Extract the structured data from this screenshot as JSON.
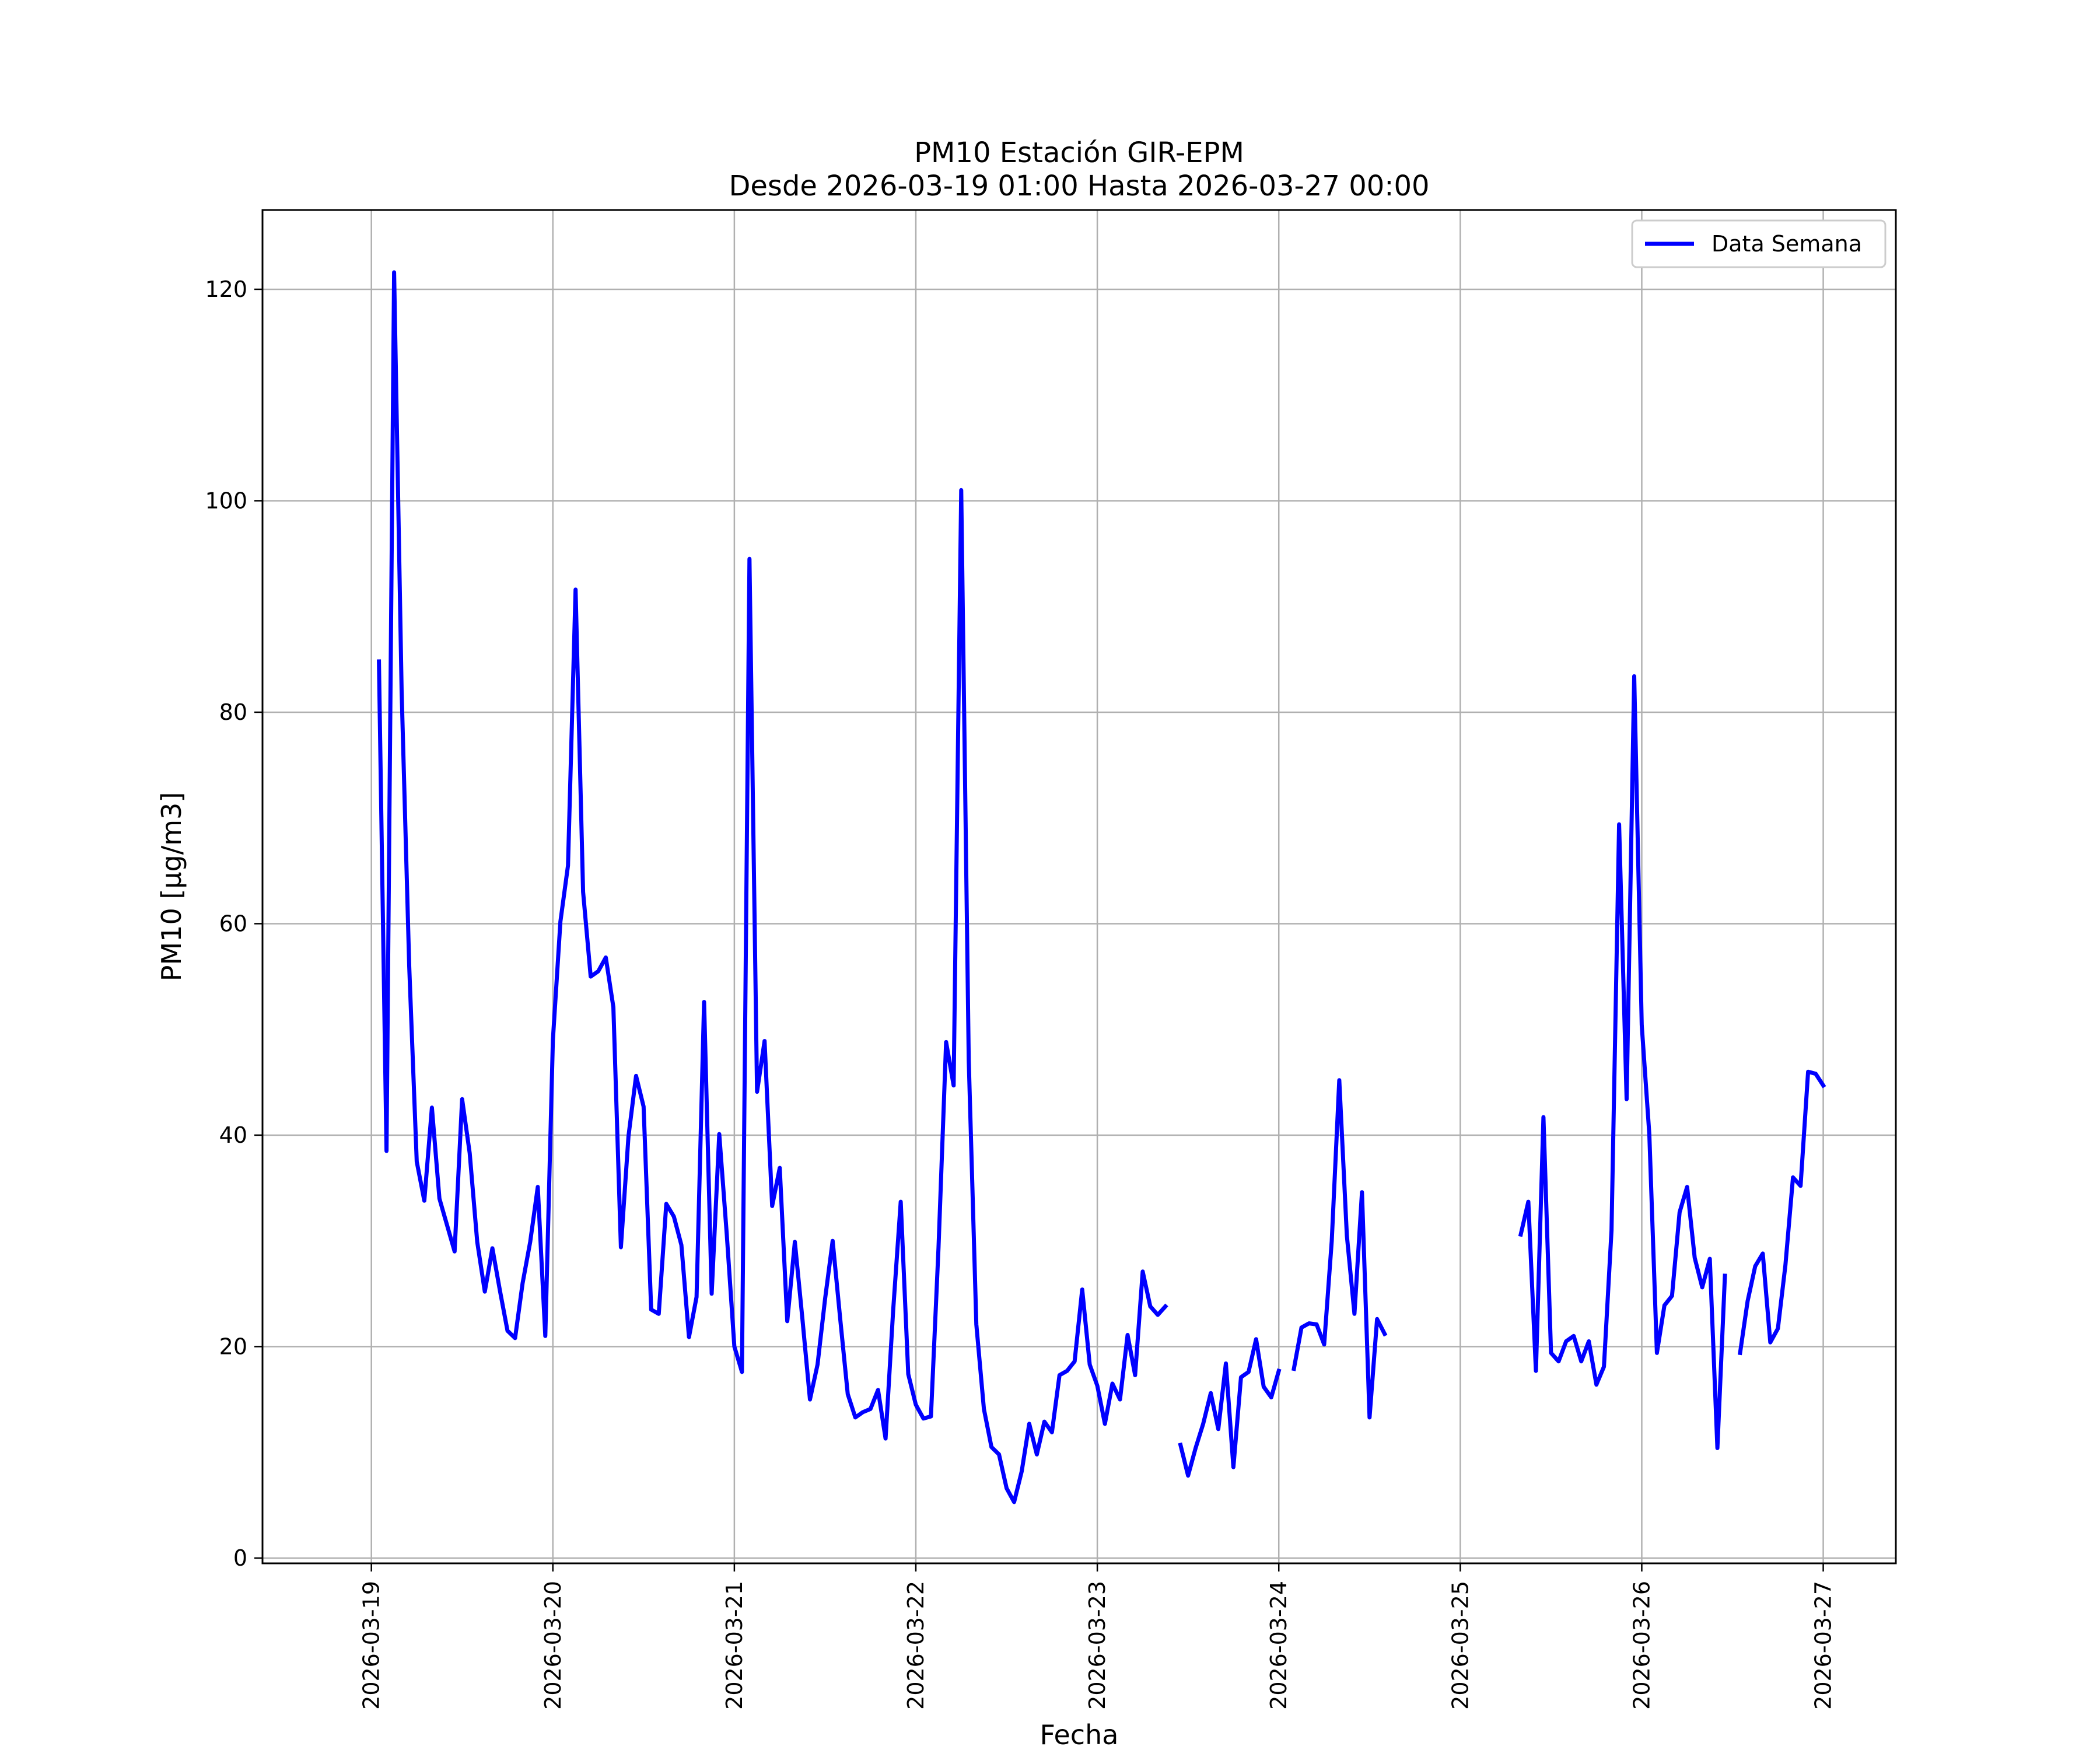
{
  "chart_data": {
    "type": "line",
    "title": "PM10 Estación GIR-EPM",
    "subtitle": "Desde 2026-03-19 01:00 Hasta 2026-03-27 00:00",
    "xlabel": "Fecha",
    "ylabel": "PM10 [μg/m3]",
    "ylim": [
      -0.5,
      127.5
    ],
    "xlim": [
      "2026-03-18 09:36",
      "2026-03-27 09:36"
    ],
    "yticks": [
      0,
      20,
      40,
      60,
      80,
      100,
      120
    ],
    "xticks": [
      "2026-03-19",
      "2026-03-20",
      "2026-03-21",
      "2026-03-22",
      "2026-03-23",
      "2026-03-24",
      "2026-03-25",
      "2026-03-26",
      "2026-03-27"
    ],
    "grid": true,
    "legend_position": "top-right",
    "series": [
      {
        "name": "Data Semana",
        "color": "#0000ff",
        "x": [
          "2026-03-19 01:00",
          "2026-03-19 02:00",
          "2026-03-19 03:00",
          "2026-03-19 04:00",
          "2026-03-19 05:00",
          "2026-03-19 06:00",
          "2026-03-19 07:00",
          "2026-03-19 08:00",
          "2026-03-19 09:00",
          "2026-03-19 10:00",
          "2026-03-19 11:00",
          "2026-03-19 12:00",
          "2026-03-19 13:00",
          "2026-03-19 14:00",
          "2026-03-19 15:00",
          "2026-03-19 16:00",
          "2026-03-19 17:00",
          "2026-03-19 18:00",
          "2026-03-19 19:00",
          "2026-03-19 20:00",
          "2026-03-19 21:00",
          "2026-03-19 22:00",
          "2026-03-19 23:00",
          "2026-03-20 00:00",
          "2026-03-20 01:00",
          "2026-03-20 02:00",
          "2026-03-20 03:00",
          "2026-03-20 04:00",
          "2026-03-20 05:00",
          "2026-03-20 06:00",
          "2026-03-20 07:00",
          "2026-03-20 08:00",
          "2026-03-20 09:00",
          "2026-03-20 10:00",
          "2026-03-20 11:00",
          "2026-03-20 12:00",
          "2026-03-20 13:00",
          "2026-03-20 14:00",
          "2026-03-20 15:00",
          "2026-03-20 16:00",
          "2026-03-20 17:00",
          "2026-03-20 18:00",
          "2026-03-20 19:00",
          "2026-03-20 20:00",
          "2026-03-20 21:00",
          "2026-03-20 22:00",
          "2026-03-20 23:00",
          "2026-03-21 00:00",
          "2026-03-21 01:00",
          "2026-03-21 02:00",
          "2026-03-21 03:00",
          "2026-03-21 04:00",
          "2026-03-21 05:00",
          "2026-03-21 06:00",
          "2026-03-21 07:00",
          "2026-03-21 08:00",
          "2026-03-21 09:00",
          "2026-03-21 10:00",
          "2026-03-21 11:00",
          "2026-03-21 12:00",
          "2026-03-21 13:00",
          "2026-03-21 14:00",
          "2026-03-21 15:00",
          "2026-03-21 16:00",
          "2026-03-21 17:00",
          "2026-03-21 18:00",
          "2026-03-21 19:00",
          "2026-03-21 20:00",
          "2026-03-21 21:00",
          "2026-03-21 22:00",
          "2026-03-21 23:00",
          "2026-03-22 00:00",
          "2026-03-22 01:00",
          "2026-03-22 02:00",
          "2026-03-22 03:00",
          "2026-03-22 04:00",
          "2026-03-22 05:00",
          "2026-03-22 06:00",
          "2026-03-22 07:00",
          "2026-03-22 08:00",
          "2026-03-22 09:00",
          "2026-03-22 10:00",
          "2026-03-22 11:00",
          "2026-03-22 12:00",
          "2026-03-22 13:00",
          "2026-03-22 14:00",
          "2026-03-22 15:00",
          "2026-03-22 16:00",
          "2026-03-22 17:00",
          "2026-03-22 18:00",
          "2026-03-22 19:00",
          "2026-03-22 20:00",
          "2026-03-22 21:00",
          "2026-03-22 22:00",
          "2026-03-22 23:00",
          "2026-03-23 00:00",
          "2026-03-23 01:00",
          "2026-03-23 02:00",
          "2026-03-23 03:00",
          "2026-03-23 04:00",
          "2026-03-23 05:00",
          "2026-03-23 06:00",
          "2026-03-23 07:00",
          "2026-03-23 08:00",
          "2026-03-23 09:00",
          "2026-03-23 10:00",
          "2026-03-23 11:00",
          "2026-03-23 12:00",
          "2026-03-23 13:00",
          "2026-03-23 14:00",
          "2026-03-23 15:00",
          "2026-03-23 16:00",
          "2026-03-23 17:00",
          "2026-03-23 18:00",
          "2026-03-23 19:00",
          "2026-03-23 20:00",
          "2026-03-23 21:00",
          "2026-03-23 22:00",
          "2026-03-23 23:00",
          "2026-03-24 00:00",
          "2026-03-24 01:00",
          "2026-03-24 02:00",
          "2026-03-24 03:00",
          "2026-03-24 04:00",
          "2026-03-24 05:00",
          "2026-03-24 06:00",
          "2026-03-24 07:00",
          "2026-03-24 08:00",
          "2026-03-24 09:00",
          "2026-03-24 10:00",
          "2026-03-24 11:00",
          "2026-03-24 12:00",
          "2026-03-24 13:00",
          "2026-03-24 14:00",
          "2026-03-25 08:00",
          "2026-03-25 09:00",
          "2026-03-25 10:00",
          "2026-03-25 11:00",
          "2026-03-25 12:00",
          "2026-03-25 13:00",
          "2026-03-25 14:00",
          "2026-03-25 15:00",
          "2026-03-25 16:00",
          "2026-03-25 17:00",
          "2026-03-25 18:00",
          "2026-03-25 19:00",
          "2026-03-25 20:00",
          "2026-03-25 21:00",
          "2026-03-25 22:00",
          "2026-03-25 23:00",
          "2026-03-26 00:00",
          "2026-03-26 01:00",
          "2026-03-26 02:00",
          "2026-03-26 03:00",
          "2026-03-26 04:00",
          "2026-03-26 05:00",
          "2026-03-26 06:00",
          "2026-03-26 07:00",
          "2026-03-26 08:00",
          "2026-03-26 09:00",
          "2026-03-26 10:00",
          "2026-03-26 11:00",
          "2026-03-26 13:00",
          "2026-03-26 14:00",
          "2026-03-26 15:00",
          "2026-03-26 16:00",
          "2026-03-26 17:00",
          "2026-03-26 18:00",
          "2026-03-26 19:00",
          "2026-03-26 20:00",
          "2026-03-26 21:00",
          "2026-03-26 22:00",
          "2026-03-26 23:00",
          "2026-03-27 00:00"
        ],
        "values": [
          84.8,
          38.5,
          121.6,
          82,
          56,
          37.5,
          33.8,
          42.6,
          34,
          31.5,
          29,
          43.4,
          38.3,
          29.9,
          25.2,
          29.3,
          25.3,
          21.5,
          20.8,
          26,
          29.9,
          35.1,
          21,
          49,
          60.2,
          65.5,
          91.6,
          63,
          55,
          55.5,
          56.8,
          52.1,
          29.4,
          39.9,
          45.6,
          42.7,
          23.5,
          23.1,
          33.5,
          32.3,
          29.6,
          20.9,
          24.7,
          52.6,
          25,
          40.1,
          30.6,
          20,
          17.6,
          94.5,
          44.1,
          48.9,
          33.3,
          36.9,
          22.4,
          29.9,
          22.6,
          15,
          18.3,
          24.5,
          30,
          22.6,
          15.5,
          13.3,
          13.8,
          14.1,
          15.9,
          11.3,
          23.4,
          33.7,
          17.4,
          14.5,
          13.2,
          13.4,
          29.4,
          48.8,
          44.7,
          101,
          47.1,
          22.1,
          14.1,
          10.5,
          9.8,
          6.6,
          5.3,
          8.2,
          12.7,
          9.8,
          12.9,
          11.9,
          17.3,
          17.7,
          18.6,
          25.4,
          18.3,
          16.3,
          12.7,
          16.5,
          15,
          21.1,
          17.3,
          27.1,
          23.8,
          23,
          23.8,
          null,
          10.7,
          7.8,
          10.4,
          12.7,
          15.6,
          12.2,
          18.4,
          8.6,
          17.1,
          17.6,
          20.7,
          16.2,
          15.2,
          17.7,
          null,
          17.9,
          21.8,
          22.2,
          22.1,
          20.2,
          30,
          45.2,
          30.5,
          23.1,
          34.6,
          13.3,
          22.6,
          21.2,
          30.6,
          33.7,
          17.7,
          41.7,
          19.4,
          18.6,
          20.5,
          21,
          18.6,
          20.5,
          16.4,
          18.1,
          31,
          69.4,
          43.4,
          83.4,
          50.4,
          40.1,
          19.4,
          23.9,
          24.8,
          32.7,
          35.1,
          28.4,
          25.6,
          28.3,
          10.4,
          26.7,
          19.4,
          24.3,
          27.6,
          28.8,
          20.4,
          21.7,
          27.7,
          36,
          35.2,
          46,
          45.8,
          44.7
        ]
      }
    ]
  }
}
